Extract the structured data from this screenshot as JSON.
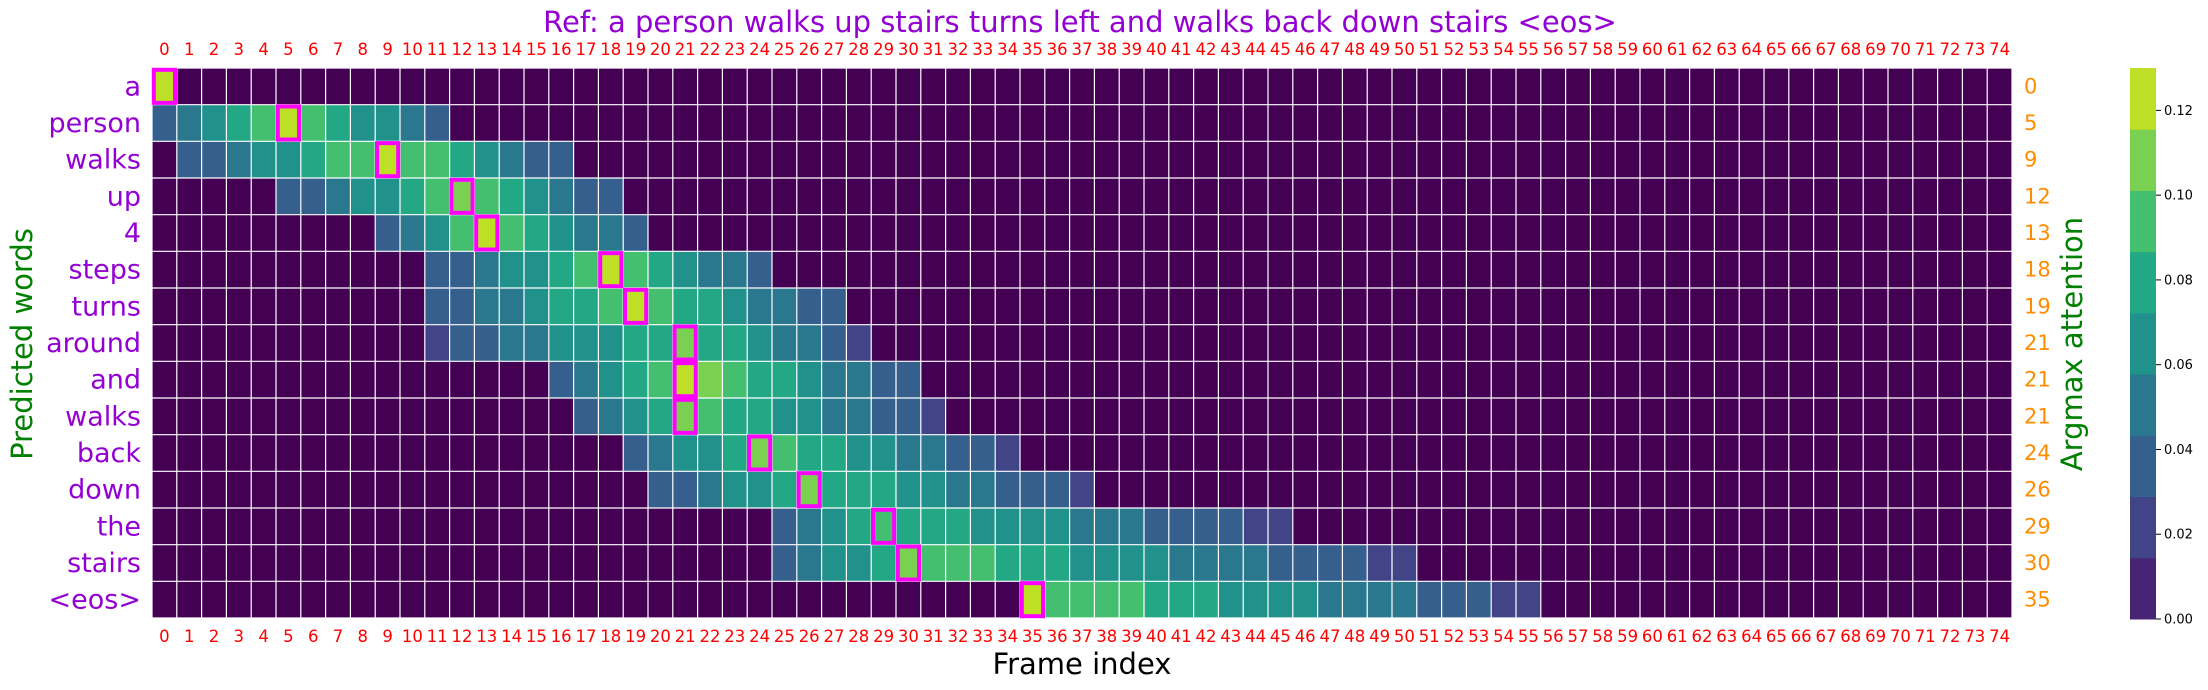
{
  "chart_data": {
    "type": "heatmap",
    "title": "Ref: a person walks up stairs turns left and walks back down stairs <eos>",
    "xlabel": "Frame index",
    "ylabel_left": "Predicted words",
    "ylabel_right": "Argmax attention",
    "x_ticks": [
      0,
      1,
      2,
      3,
      4,
      5,
      6,
      7,
      8,
      9,
      10,
      11,
      12,
      13,
      14,
      15,
      16,
      17,
      18,
      19,
      20,
      21,
      22,
      23,
      24,
      25,
      26,
      27,
      28,
      29,
      30,
      31,
      32,
      33,
      34,
      35,
      36,
      37,
      38,
      39,
      40,
      41,
      42,
      43,
      44,
      45,
      46,
      47,
      48,
      49,
      50,
      51,
      52,
      53,
      54,
      55,
      56,
      57,
      58,
      59,
      60,
      61,
      62,
      63,
      64,
      65,
      66,
      67,
      68,
      69,
      70,
      71,
      72,
      73,
      74
    ],
    "rows": [
      "a",
      "person",
      "walks",
      "up",
      "4",
      "steps",
      "turns",
      "around",
      "and",
      "walks",
      "back",
      "down",
      "the",
      "stairs",
      "<eos>"
    ],
    "argmax": [
      0,
      5,
      9,
      12,
      13,
      18,
      19,
      21,
      21,
      21,
      24,
      26,
      29,
      30,
      35
    ],
    "vmin": 0.0,
    "vmax": 0.13,
    "colorbar_ticks": [
      "0.00",
      "0.02",
      "0.04",
      "0.06",
      "0.08",
      "0.10",
      "0.12"
    ],
    "colormap": [
      "#482475",
      "#414487",
      "#355f8d",
      "#2a788e",
      "#21918c",
      "#22a884",
      "#44bf70",
      "#7ad151",
      "#bddf26"
    ],
    "row_ranges": [
      [
        0,
        0,
        0.128
      ],
      [
        0,
        11,
        0.125
      ],
      [
        1,
        16,
        0.125
      ],
      [
        5,
        18,
        0.115
      ],
      [
        9,
        19,
        0.122
      ],
      [
        11,
        24,
        0.118
      ],
      [
        11,
        27,
        0.118
      ],
      [
        11,
        28,
        0.105
      ],
      [
        16,
        30,
        0.128
      ],
      [
        17,
        31,
        0.115
      ],
      [
        19,
        34,
        0.11
      ],
      [
        20,
        37,
        0.105
      ],
      [
        25,
        45,
        0.098
      ],
      [
        25,
        50,
        0.112
      ],
      [
        35,
        55,
        0.118
      ]
    ],
    "colors": {
      "title": "#9400D3",
      "words": "#9400D3",
      "ylabel": "#008000",
      "x_ticks": "#ff0000",
      "right_ticks": "#FF8C00",
      "highlight": "#FF00FF",
      "empty": "#440154"
    }
  }
}
